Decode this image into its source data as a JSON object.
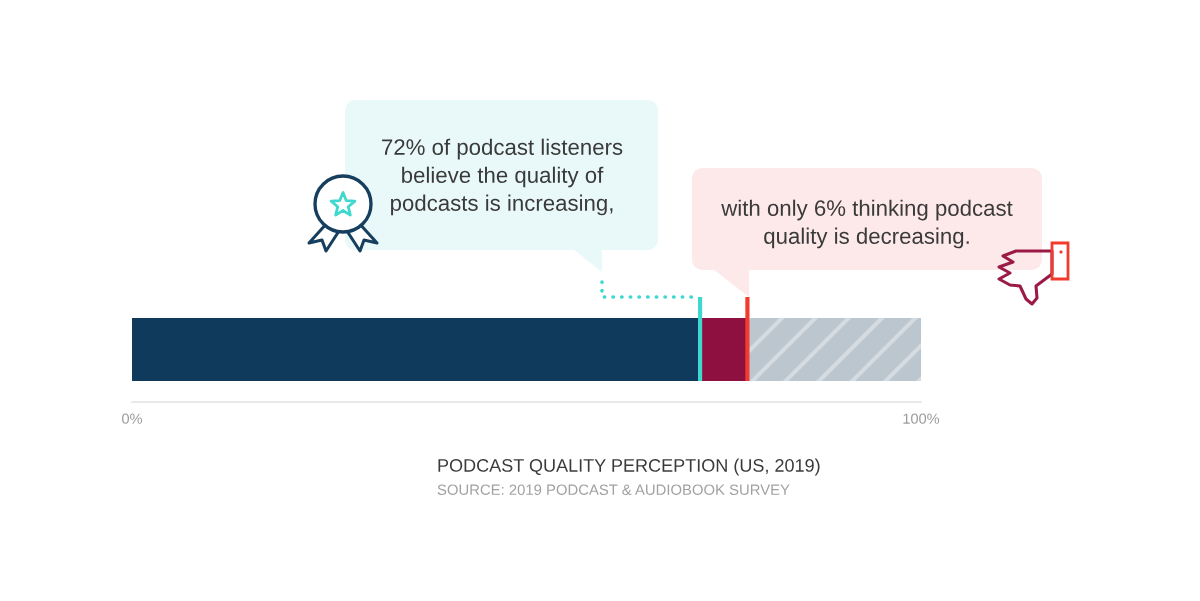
{
  "chart_data": {
    "type": "bar",
    "orientation": "horizontal",
    "stacked": true,
    "title": "PODCAST QUALITY PERCEPTION (US, 2019)",
    "categories": [
      null
    ],
    "series": [
      {
        "color": "#0f3a5c",
        "values": [
          72
        ]
      },
      {
        "color": "#8e1040",
        "values": [
          6
        ]
      },
      {
        "color": "#bcc6cf",
        "values": [
          22
        ]
      }
    ],
    "xlim": [
      0,
      100
    ],
    "xticks": [
      {
        "value": 0,
        "label": "0%"
      },
      {
        "value": 100,
        "label": "100%"
      }
    ],
    "tick_labels": "x",
    "ref_lines": [
      {
        "axis": "x",
        "value": 72,
        "color": "#3fd8cf"
      },
      {
        "axis": "x",
        "value": 78,
        "color": "#f23b2c"
      }
    ],
    "annotations": [
      "72% of podcast listeners\nbelieve the quality of\npodcasts is increasing,",
      "with only 6% thinking podcast\nquality is decreasing.",
      "SOURCE: 2019 PODCAST & AUDIOBOOK SURVEY"
    ]
  }
}
